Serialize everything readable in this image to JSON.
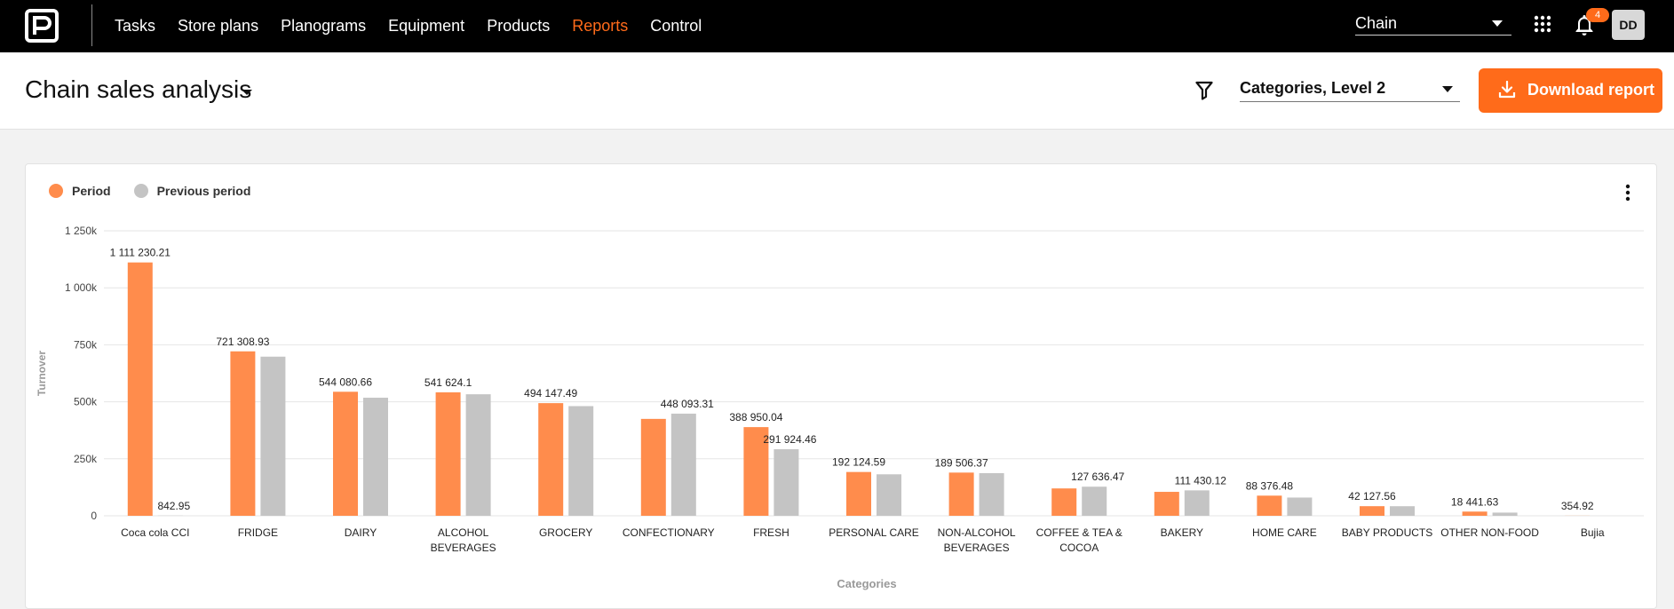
{
  "app": {
    "nav": [
      "Tasks",
      "Store plans",
      "Planograms",
      "Equipment",
      "Products",
      "Reports",
      "Control"
    ],
    "active_nav": "Reports",
    "chain_select": "Chain",
    "notification_count": "4",
    "avatar_initials": "DD"
  },
  "header": {
    "title": "Chain sales analysis",
    "level_select": "Categories, Level 2",
    "download_label": "Download report"
  },
  "colors": {
    "accent": "#ff6b1a",
    "period": "#ff8c4c",
    "previous_period": "#c4c4c4",
    "topbar": "#000000"
  },
  "icons": [
    "logo-icon",
    "apps-grid-icon",
    "bell-icon",
    "filter-icon",
    "download-icon",
    "more-vert-icon",
    "caret-down-icon"
  ],
  "chart_data": {
    "type": "bar",
    "xlabel": "Categories",
    "ylabel": "Turnover",
    "ylim": [
      0,
      1250000
    ],
    "yticks": [
      0,
      250000,
      500000,
      750000,
      1000000,
      1250000
    ],
    "ytick_labels": [
      "0",
      "250k",
      "500k",
      "750k",
      "1 000k",
      "1 250k"
    ],
    "grid": true,
    "legend_position": "top-left",
    "categories": [
      "Coca cola CCI",
      "FRIDGE",
      "DAIRY",
      "ALCOHOL BEVERAGES",
      "GROCERY",
      "CONFECTIONARY",
      "FRESH",
      "PERSONAL CARE",
      "NON-ALCOHOL BEVERAGES",
      "COFFEE & TEA & COCOA",
      "BAKERY",
      "HOME CARE",
      "BABY PRODUCTS",
      "OTHER NON-FOOD",
      "Bujia"
    ],
    "category_lines": [
      [
        "Coca cola CCI"
      ],
      [
        "FRIDGE"
      ],
      [
        "DAIRY"
      ],
      [
        "ALCOHOL",
        "BEVERAGES"
      ],
      [
        "GROCERY"
      ],
      [
        "CONFECTIONARY"
      ],
      [
        "FRESH"
      ],
      [
        "PERSONAL CARE"
      ],
      [
        "NON-ALCOHOL",
        "BEVERAGES"
      ],
      [
        "COFFEE & TEA &",
        "COCOA"
      ],
      [
        "BAKERY"
      ],
      [
        "HOME CARE"
      ],
      [
        "BABY PRODUCTS"
      ],
      [
        "OTHER NON-FOOD"
      ],
      [
        "Bujia"
      ]
    ],
    "series": [
      {
        "name": "Period",
        "color": "#ff8c4c",
        "values": [
          1111230.21,
          721308.93,
          544080.66,
          541624.1,
          494147.49,
          425000,
          388950.04,
          192124.59,
          189506.37,
          120000,
          105000,
          88376.48,
          42127.56,
          18441.63,
          354.92
        ],
        "labels": [
          "1 111 230.21",
          "721 308.93",
          "544 080.66",
          "541 624.1",
          "494 147.49",
          "",
          "388 950.04",
          "192 124.59",
          "189 506.37",
          "",
          "",
          "88 376.48",
          "42 127.56",
          "18 441.63",
          "354.92"
        ]
      },
      {
        "name": "Previous period",
        "color": "#c4c4c4",
        "values": [
          842.95,
          698000,
          518000,
          533000,
          481000,
          448093.31,
          291924.46,
          182000,
          187000,
          127636.47,
          111430.12,
          80000,
          42000,
          14000,
          0
        ],
        "labels": [
          "842.95",
          "",
          "",
          "",
          "",
          "448 093.31",
          "291 924.46",
          "",
          "",
          "127 636.47",
          "111 430.12",
          "",
          "",
          "",
          ""
        ]
      }
    ]
  }
}
